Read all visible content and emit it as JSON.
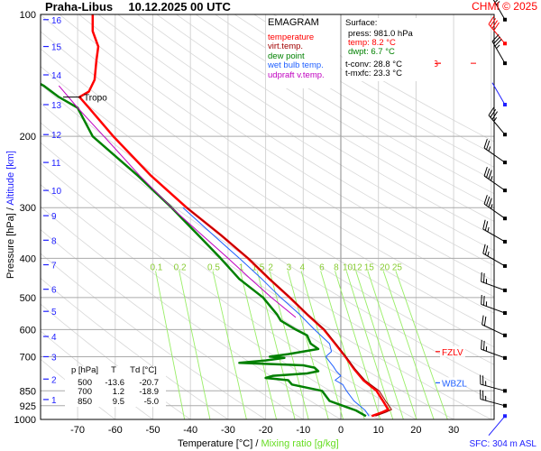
{
  "header": {
    "station": "Praha-Libus",
    "datetime": "10.12.2025 00 UTC",
    "copyright": "CHMI © 2025"
  },
  "legend": {
    "title": "EMAGRAM",
    "items": [
      {
        "label": "temperature",
        "color": "#ff0000"
      },
      {
        "label": "virt.temp.",
        "color": "#a00000"
      },
      {
        "label": "dew point",
        "color": "#008000"
      },
      {
        "label": "wet bulb temp.",
        "color": "#2060ff"
      },
      {
        "label": "udpraft v.temp.",
        "color": "#c000c0"
      }
    ]
  },
  "surface": {
    "title": "Surface:",
    "press": "press: 981.0 hPa",
    "temp": "temp: 8.2 °C",
    "dwpt": "dwpt: 6.7 °C",
    "tconv": "t-conv: 28.8 °C",
    "tmxfc": "t-mxfc: 23.3 °C"
  },
  "levels_table": {
    "headers": [
      "p [hPa]",
      "T",
      "Td [°C]"
    ],
    "rows": [
      [
        "500",
        "-13.6",
        "-20.7"
      ],
      [
        "700",
        "1.2",
        "-18.9"
      ],
      [
        "850",
        "9.5",
        "-5.0"
      ]
    ]
  },
  "markers": [
    {
      "label": "Tropo",
      "p": 160,
      "color": "#000000"
    },
    {
      "label": "MXWS",
      "p": 132,
      "color": "#ff0000"
    },
    {
      "label": "FZLV",
      "p": 680,
      "color": "#ff0000"
    },
    {
      "label": "WBZL",
      "p": 812,
      "color": "#2060ff"
    }
  ],
  "sfc_label": "SFC: 304 m ASL",
  "chart_data": {
    "type": "line",
    "title": "Praha-Libus 10.12.2025 00 UTC",
    "xlabel": "Temperature [°C]",
    "xlabel2": "Mixing ratio [g/kg]",
    "ylabel": "Pressure [hPa]",
    "ylabel2": "Altitude [km]",
    "xlim": [
      -80,
      40
    ],
    "ylim": [
      1000,
      100
    ],
    "x_ticks": [
      -70,
      -60,
      -50,
      -40,
      -30,
      -20,
      -10,
      0,
      10,
      20,
      30
    ],
    "y_ticks": [
      100,
      200,
      300,
      400,
      500,
      600,
      700,
      850,
      925,
      1000
    ],
    "altitude_ticks": [
      {
        "km": "1",
        "p": 893
      },
      {
        "km": "2",
        "p": 795
      },
      {
        "km": "3",
        "p": 700
      },
      {
        "km": "4",
        "p": 624
      },
      {
        "km": "5",
        "p": 541
      },
      {
        "km": "6",
        "p": 477
      },
      {
        "km": "7",
        "p": 415
      },
      {
        "km": "8",
        "p": 361
      },
      {
        "km": "9",
        "p": 314
      },
      {
        "km": "10",
        "p": 272
      },
      {
        "km": "11",
        "p": 232
      },
      {
        "km": "12",
        "p": 198
      },
      {
        "km": "13",
        "p": 167
      },
      {
        "km": "14",
        "p": 141
      },
      {
        "km": "15",
        "p": 120
      },
      {
        "km": "16",
        "p": 103
      }
    ],
    "mixing_ratio_lines": [
      "0.1",
      "0.2",
      "0.5",
      "1",
      "1.5",
      "2",
      "3",
      "4",
      "6",
      "8",
      "10",
      "12",
      "15",
      "20",
      "25"
    ],
    "series": [
      {
        "name": "temperature",
        "color": "#ff0000",
        "points": [
          [
            981,
            8.2
          ],
          [
            960,
            11
          ],
          [
            945,
            12.6
          ],
          [
            925,
            12
          ],
          [
            900,
            11.2
          ],
          [
            850,
            9.5
          ],
          [
            800,
            6
          ],
          [
            750,
            3.5
          ],
          [
            700,
            1.2
          ],
          [
            650,
            -1.5
          ],
          [
            600,
            -4.5
          ],
          [
            550,
            -9
          ],
          [
            500,
            -13.6
          ],
          [
            450,
            -19
          ],
          [
            400,
            -24.7
          ],
          [
            350,
            -32
          ],
          [
            300,
            -41
          ],
          [
            250,
            -50.5
          ],
          [
            200,
            -60.5
          ],
          [
            170,
            -67
          ],
          [
            160,
            -69.5
          ],
          [
            155,
            -67
          ],
          [
            145,
            -65.5
          ],
          [
            130,
            -65
          ],
          [
            120,
            -64.5
          ],
          [
            110,
            -66
          ],
          [
            100,
            -66
          ]
        ]
      },
      {
        "name": "virt.temp.",
        "color": "#a00000",
        "points": [
          [
            981,
            9.2
          ],
          [
            960,
            12
          ],
          [
            945,
            13.5
          ],
          [
            925,
            12.8
          ],
          [
            900,
            11.9
          ],
          [
            850,
            10.2
          ],
          [
            800,
            6.4
          ],
          [
            750,
            3.8
          ],
          [
            700,
            1.4
          ],
          [
            650,
            -1.3
          ],
          [
            600,
            -4.3
          ],
          [
            550,
            -8.9
          ],
          [
            500,
            -13.5
          ],
          [
            450,
            -18.9
          ],
          [
            400,
            -24.6
          ],
          [
            350,
            -32
          ],
          [
            300,
            -41
          ]
        ]
      },
      {
        "name": "dew point",
        "color": "#008000",
        "points": [
          [
            981,
            6.7
          ],
          [
            950,
            4
          ],
          [
            925,
            0.5
          ],
          [
            900,
            -3
          ],
          [
            850,
            -5
          ],
          [
            820,
            -13
          ],
          [
            800,
            -14
          ],
          [
            790,
            -20
          ],
          [
            780,
            -18
          ],
          [
            770,
            -9
          ],
          [
            760,
            -6
          ],
          [
            745,
            -7
          ],
          [
            735,
            -10
          ],
          [
            725,
            -27
          ],
          [
            715,
            -20
          ],
          [
            705,
            -15
          ],
          [
            700,
            -18.9
          ],
          [
            690,
            -14
          ],
          [
            670,
            -6
          ],
          [
            650,
            -8
          ],
          [
            620,
            -9
          ],
          [
            600,
            -12
          ],
          [
            570,
            -16
          ],
          [
            550,
            -17
          ],
          [
            500,
            -20.7
          ],
          [
            450,
            -27
          ],
          [
            400,
            -32
          ],
          [
            350,
            -38
          ],
          [
            300,
            -45
          ],
          [
            250,
            -54
          ],
          [
            200,
            -66
          ],
          [
            170,
            -70
          ],
          [
            160,
            -75
          ],
          [
            150,
            -79
          ],
          [
            145,
            -82
          ]
        ]
      },
      {
        "name": "wet bulb temp.",
        "color": "#2060ff",
        "points": [
          [
            981,
            7.5
          ],
          [
            950,
            6.5
          ],
          [
            925,
            5
          ],
          [
            900,
            3.5
          ],
          [
            850,
            1.5
          ],
          [
            820,
            0.5
          ],
          [
            800,
            -1.5
          ],
          [
            780,
            0
          ],
          [
            760,
            -1.2
          ],
          [
            740,
            -2
          ],
          [
            720,
            -3
          ],
          [
            700,
            -4
          ],
          [
            680,
            -2.5
          ],
          [
            650,
            -3
          ],
          [
            600,
            -7
          ],
          [
            550,
            -11
          ],
          [
            500,
            -16
          ],
          [
            450,
            -21
          ],
          [
            400,
            -27
          ],
          [
            350,
            -34
          ],
          [
            300,
            -42
          ]
        ]
      },
      {
        "name": "udpraft v.temp.",
        "color": "#c000c0",
        "points": [
          [
            560,
            -12
          ],
          [
            500,
            -18.5
          ],
          [
            450,
            -24
          ],
          [
            400,
            -30
          ],
          [
            350,
            -37
          ],
          [
            300,
            -45
          ],
          [
            250,
            -53.5
          ],
          [
            200,
            -63
          ],
          [
            170,
            -70
          ],
          [
            150,
            -75
          ]
        ]
      }
    ],
    "wind_barbs": [
      {
        "p": 103,
        "dir": 330,
        "kt": 35
      },
      {
        "p": 118,
        "dir": 320,
        "kt": 40
      },
      {
        "p": 132,
        "dir": 330,
        "kt": 35
      },
      {
        "p": 167,
        "dir": 330,
        "kt": 0
      },
      {
        "p": 198,
        "dir": 320,
        "kt": 35
      },
      {
        "p": 232,
        "dir": 305,
        "kt": 25
      },
      {
        "p": 272,
        "dir": 305,
        "kt": 35
      },
      {
        "p": 319,
        "dir": 305,
        "kt": 35
      },
      {
        "p": 364,
        "dir": 300,
        "kt": 25
      },
      {
        "p": 418,
        "dir": 300,
        "kt": 25
      },
      {
        "p": 480,
        "dir": 290,
        "kt": 25
      },
      {
        "p": 546,
        "dir": 290,
        "kt": 25
      },
      {
        "p": 620,
        "dir": 295,
        "kt": 20
      },
      {
        "p": 705,
        "dir": 290,
        "kt": 25
      },
      {
        "p": 850,
        "dir": 285,
        "kt": 25
      },
      {
        "p": 925,
        "dir": 285,
        "kt": 25
      },
      {
        "p": 981,
        "dir": 220,
        "kt": 3
      }
    ]
  }
}
